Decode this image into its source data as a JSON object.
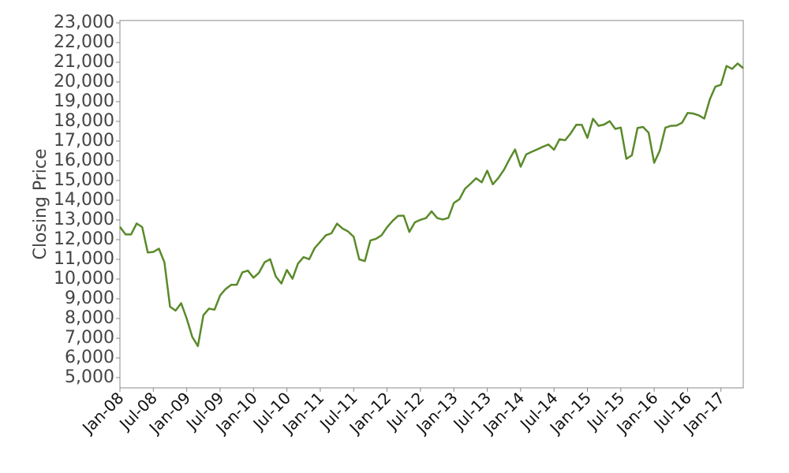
{
  "chart_data": {
    "type": "line",
    "y_label": "Closing Price",
    "x": [
      "2008-01",
      "2008-02",
      "2008-03",
      "2008-04",
      "2008-05",
      "2008-06",
      "2008-07",
      "2008-08",
      "2008-09",
      "2008-10",
      "2008-11",
      "2008-12",
      "2009-01",
      "2009-02",
      "2009-03",
      "2009-04",
      "2009-05",
      "2009-06",
      "2009-07",
      "2009-08",
      "2009-09",
      "2009-10",
      "2009-11",
      "2009-12",
      "2010-01",
      "2010-02",
      "2010-03",
      "2010-04",
      "2010-05",
      "2010-06",
      "2010-07",
      "2010-08",
      "2010-09",
      "2010-10",
      "2010-11",
      "2010-12",
      "2011-01",
      "2011-02",
      "2011-03",
      "2011-04",
      "2011-05",
      "2011-06",
      "2011-07",
      "2011-08",
      "2011-09",
      "2011-10",
      "2011-11",
      "2011-12",
      "2012-01",
      "2012-02",
      "2012-03",
      "2012-04",
      "2012-05",
      "2012-06",
      "2012-07",
      "2012-08",
      "2012-09",
      "2012-10",
      "2012-11",
      "2012-12",
      "2013-01",
      "2013-02",
      "2013-03",
      "2013-04",
      "2013-05",
      "2013-06",
      "2013-07",
      "2013-08",
      "2013-09",
      "2013-10",
      "2013-11",
      "2013-12",
      "2014-01",
      "2014-02",
      "2014-03",
      "2014-04",
      "2014-05",
      "2014-06",
      "2014-07",
      "2014-08",
      "2014-09",
      "2014-10",
      "2014-11",
      "2014-12",
      "2015-01",
      "2015-02",
      "2015-03",
      "2015-04",
      "2015-05",
      "2015-06",
      "2015-07",
      "2015-08",
      "2015-09",
      "2015-10",
      "2015-11",
      "2015-12",
      "2016-01",
      "2016-02",
      "2016-03",
      "2016-04",
      "2016-05",
      "2016-06",
      "2016-07",
      "2016-08",
      "2016-09",
      "2016-10",
      "2016-11",
      "2016-12",
      "2017-01",
      "2017-02",
      "2017-03",
      "2017-04",
      "2017-05"
    ],
    "series": [
      {
        "color": "#5a8a2a",
        "values": [
          12650,
          12266,
          12262,
          12820,
          12638,
          11350,
          11378,
          11543,
          10850,
          8600,
          8400,
          8776,
          8000,
          7063,
          6600,
          8168,
          8500,
          8447,
          9171,
          9496,
          9712,
          9712,
          10344,
          10428,
          10067,
          10325,
          10857,
          11009,
          10137,
          9774,
          10466,
          10015,
          10788,
          11118,
          11006,
          11578,
          11892,
          12226,
          12320,
          12811,
          12570,
          12414,
          12143,
          11000,
          10913,
          11955,
          12046,
          12218,
          12633,
          12952,
          13212,
          13214,
          12393,
          12880,
          13009,
          13091,
          13437,
          13096,
          13026,
          13104,
          13861,
          14054,
          14579,
          14840,
          15116,
          14910,
          15500,
          14810,
          15130,
          15546,
          16086,
          16577,
          15699,
          16322,
          16458,
          16581,
          16717,
          16827,
          16563,
          17098,
          17043,
          17391,
          17828,
          17823,
          17165,
          18133,
          17776,
          17841,
          18011,
          17620,
          17690,
          16100,
          16285,
          17664,
          17720,
          17425,
          15900,
          16517,
          17685,
          17774,
          17787,
          17930,
          18432,
          18401,
          18308,
          18142,
          19124,
          19763,
          19864,
          20812,
          20663,
          20940,
          20700
        ]
      }
    ],
    "xlim": [
      "2008-01",
      "2017-05"
    ],
    "xticks": [
      {
        "value": "2008-01",
        "label": "Jan-08"
      },
      {
        "value": "2008-07",
        "label": "Jul-08"
      },
      {
        "value": "2009-01",
        "label": "Jan-09"
      },
      {
        "value": "2009-07",
        "label": "Jul-09"
      },
      {
        "value": "2010-01",
        "label": "Jan-10"
      },
      {
        "value": "2010-07",
        "label": "Jul-10"
      },
      {
        "value": "2011-01",
        "label": "Jan-11"
      },
      {
        "value": "2011-07",
        "label": "Jul-11"
      },
      {
        "value": "2012-01",
        "label": "Jan-12"
      },
      {
        "value": "2012-07",
        "label": "Jul-12"
      },
      {
        "value": "2013-01",
        "label": "Jan-13"
      },
      {
        "value": "2013-07",
        "label": "Jul-13"
      },
      {
        "value": "2014-01",
        "label": "Jan-14"
      },
      {
        "value": "2014-07",
        "label": "Jul-14"
      },
      {
        "value": "2015-01",
        "label": "Jan-15"
      },
      {
        "value": "2015-07",
        "label": "Jul-15"
      },
      {
        "value": "2016-01",
        "label": "Jan-16"
      },
      {
        "value": "2016-07",
        "label": "Jul-16"
      },
      {
        "value": "2017-01",
        "label": "Jan-17"
      }
    ],
    "ylim": [
      4480,
      23120
    ],
    "yticks": [
      {
        "value": 5000,
        "label": "5,000"
      },
      {
        "value": 6000,
        "label": "6,000"
      },
      {
        "value": 7000,
        "label": "7,000"
      },
      {
        "value": 8000,
        "label": "8,000"
      },
      {
        "value": 9000,
        "label": "9,000"
      },
      {
        "value": 10000,
        "label": "10,000"
      },
      {
        "value": 11000,
        "label": "11,000"
      },
      {
        "value": 12000,
        "label": "12,000"
      },
      {
        "value": 13000,
        "label": "13,000"
      },
      {
        "value": 14000,
        "label": "14,000"
      },
      {
        "value": 15000,
        "label": "15,000"
      },
      {
        "value": 16000,
        "label": "16,000"
      },
      {
        "value": 17000,
        "label": "17,000"
      },
      {
        "value": 18000,
        "label": "18,000"
      },
      {
        "value": 19000,
        "label": "19,000"
      },
      {
        "value": 20000,
        "label": "20,000"
      },
      {
        "value": 21000,
        "label": "21,000"
      },
      {
        "value": 22000,
        "label": "22,000"
      },
      {
        "value": 23000,
        "label": "23,000"
      }
    ],
    "grid": false
  }
}
